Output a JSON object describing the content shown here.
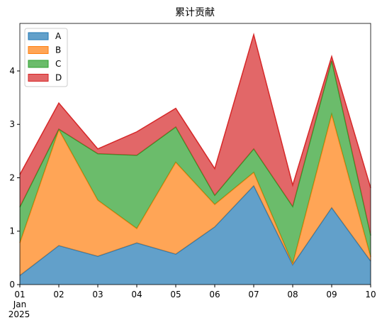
{
  "chart_data": {
    "type": "stacked_area",
    "title": "累计贡献",
    "categories": [
      "01",
      "02",
      "03",
      "04",
      "05",
      "06",
      "07",
      "08",
      "09",
      "10"
    ],
    "xlabel_month": "Jan",
    "xlabel_year": "2025",
    "series": [
      {
        "name": "A",
        "color": "#1f77b4",
        "values": [
          0.17,
          0.73,
          0.53,
          0.78,
          0.57,
          1.08,
          1.85,
          0.37,
          1.44,
          0.44
        ]
      },
      {
        "name": "B",
        "color": "#ff7f0e",
        "values": [
          0.61,
          2.17,
          1.05,
          0.27,
          1.72,
          0.42,
          0.25,
          0.02,
          1.75,
          0.08
        ]
      },
      {
        "name": "C",
        "color": "#2ca02c",
        "values": [
          0.67,
          0.01,
          0.87,
          1.37,
          0.66,
          0.17,
          0.44,
          1.07,
          1.0,
          0.4
        ]
      },
      {
        "name": "D",
        "color": "#d62728",
        "values": [
          0.61,
          0.49,
          0.09,
          0.44,
          0.35,
          0.5,
          2.14,
          0.4,
          0.08,
          0.89
        ]
      }
    ],
    "ylim": [
      0,
      4.89
    ],
    "yticks": [
      0,
      1,
      2,
      3,
      4
    ],
    "legend": "upper left",
    "fill_opacity": 0.7
  }
}
